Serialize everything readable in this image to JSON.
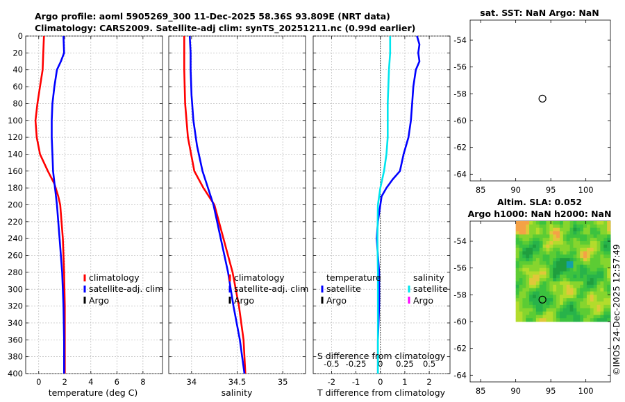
{
  "header": {
    "line1": "Argo profile: aoml 5905269_300 11-Dec-2025 58.36S 93.809E (NRT data)",
    "line2": "Climatology: CARS2009. Satellite-adj clim: synTS_20251211.nc (0.99d earlier)"
  },
  "footer_stamp": "©IMOS 24-Dec-2025 12:57:49",
  "colors": {
    "climatology": "#ff0000",
    "satellite": "#0000ff",
    "argo": "#000000",
    "sal_satellite": "#00e5ee",
    "sal_argo": "#ff00ff"
  },
  "chart_data": [
    {
      "id": "temperature",
      "type": "line",
      "xlabel": "temperature (deg C)",
      "xlim": [
        -1,
        9.5
      ],
      "xticks": [
        0,
        2,
        4,
        6,
        8
      ],
      "xtick_labels": [
        "0",
        "2",
        "4",
        "6",
        "8"
      ],
      "ylim": [
        0,
        400
      ],
      "yticks": [
        0,
        20,
        40,
        60,
        80,
        100,
        120,
        140,
        160,
        180,
        200,
        220,
        240,
        260,
        280,
        300,
        320,
        340,
        360,
        380,
        400
      ],
      "ytick_labels": [
        "0",
        "20",
        "40",
        "60",
        "80",
        "100",
        "120",
        "140",
        "160",
        "180",
        "200",
        "220",
        "240",
        "260",
        "280",
        "300",
        "320",
        "340",
        "360",
        "380",
        "400"
      ],
      "series": [
        {
          "name": "climatology",
          "color": "#ff0000",
          "points": [
            [
              0.4,
              0
            ],
            [
              0.35,
              20
            ],
            [
              0.3,
              40
            ],
            [
              0.1,
              60
            ],
            [
              -0.1,
              80
            ],
            [
              -0.25,
              100
            ],
            [
              -0.15,
              120
            ],
            [
              0.1,
              140
            ],
            [
              0.7,
              160
            ],
            [
              1.2,
              175
            ],
            [
              1.5,
              190
            ],
            [
              1.65,
              200
            ],
            [
              1.85,
              240
            ],
            [
              1.95,
              280
            ],
            [
              2.0,
              320
            ],
            [
              2.0,
              360
            ],
            [
              2.0,
              400
            ]
          ]
        },
        {
          "name": "satellite-adj. clim",
          "color": "#0000ff",
          "points": [
            [
              1.9,
              0
            ],
            [
              1.95,
              20
            ],
            [
              1.7,
              30
            ],
            [
              1.4,
              40
            ],
            [
              1.2,
              60
            ],
            [
              1.05,
              80
            ],
            [
              1.0,
              100
            ],
            [
              1.0,
              120
            ],
            [
              1.05,
              140
            ],
            [
              1.1,
              160
            ],
            [
              1.25,
              180
            ],
            [
              1.4,
              200
            ],
            [
              1.6,
              240
            ],
            [
              1.8,
              280
            ],
            [
              1.9,
              320
            ],
            [
              1.95,
              360
            ],
            [
              1.95,
              400
            ]
          ]
        }
      ],
      "legend": [
        "climatology",
        "satellite-adj. clim",
        "Argo"
      ]
    },
    {
      "id": "salinity",
      "type": "line",
      "xlabel": "salinity",
      "xlim": [
        33.75,
        35.25
      ],
      "xticks": [
        34,
        34.5,
        35
      ],
      "xtick_labels": [
        "34",
        "34.5",
        "35"
      ],
      "ylim": [
        0,
        400
      ],
      "series": [
        {
          "name": "climatology",
          "color": "#ff0000",
          "points": [
            [
              33.92,
              0
            ],
            [
              33.92,
              40
            ],
            [
              33.93,
              80
            ],
            [
              33.96,
              120
            ],
            [
              34.03,
              160
            ],
            [
              34.13,
              180
            ],
            [
              34.25,
              200
            ],
            [
              34.35,
              240
            ],
            [
              34.45,
              280
            ],
            [
              34.52,
              320
            ],
            [
              34.57,
              360
            ],
            [
              34.59,
              400
            ]
          ]
        },
        {
          "name": "satellite-adj. clim",
          "color": "#0000ff",
          "points": [
            [
              33.98,
              0
            ],
            [
              33.99,
              20
            ],
            [
              33.99,
              40
            ],
            [
              34.0,
              70
            ],
            [
              34.02,
              100
            ],
            [
              34.06,
              130
            ],
            [
              34.12,
              160
            ],
            [
              34.18,
              180
            ],
            [
              34.24,
              200
            ],
            [
              34.32,
              240
            ],
            [
              34.4,
              280
            ],
            [
              34.46,
              320
            ],
            [
              34.53,
              360
            ],
            [
              34.58,
              400
            ]
          ]
        }
      ],
      "legend": [
        "climatology",
        "satellite-adj. clim",
        "Argo"
      ]
    },
    {
      "id": "difference",
      "type": "line",
      "xlabel": "T difference from climatology",
      "xlim": [
        -2.75,
        2.85
      ],
      "xticks": [
        -2,
        -1,
        0,
        1,
        2
      ],
      "xtick_labels": [
        "-2",
        "-1",
        "0",
        "1",
        "2"
      ],
      "top_label": "S difference from climatology",
      "top_ticks": [
        "-0.5",
        "-0.25",
        "0",
        "0.25",
        "0.5"
      ],
      "top_tick_positions": [
        -2,
        -1,
        0,
        1,
        2
      ],
      "ylim": [
        0,
        400
      ],
      "series": [
        {
          "name": "temperature satellite",
          "color": "#0000ff",
          "points": [
            [
              1.5,
              0
            ],
            [
              1.6,
              10
            ],
            [
              1.55,
              20
            ],
            [
              1.6,
              30
            ],
            [
              1.45,
              40
            ],
            [
              1.35,
              60
            ],
            [
              1.3,
              80
            ],
            [
              1.25,
              100
            ],
            [
              1.15,
              120
            ],
            [
              0.95,
              140
            ],
            [
              0.8,
              160
            ],
            [
              0.5,
              170
            ],
            [
              0.25,
              180
            ],
            [
              0.05,
              190
            ],
            [
              0.0,
              200
            ],
            [
              -0.1,
              220
            ],
            [
              -0.15,
              240
            ],
            [
              -0.1,
              260
            ],
            [
              -0.05,
              280
            ],
            [
              -0.05,
              320
            ],
            [
              -0.1,
              360
            ],
            [
              -0.1,
              400
            ]
          ]
        },
        {
          "name": "salinity satellite",
          "color": "#00e5ee",
          "points": [
            [
              0.4,
              0
            ],
            [
              0.4,
              20
            ],
            [
              0.35,
              40
            ],
            [
              0.3,
              80
            ],
            [
              0.3,
              100
            ],
            [
              0.3,
              120
            ],
            [
              0.25,
              140
            ],
            [
              0.15,
              160
            ],
            [
              0.0,
              180
            ],
            [
              -0.1,
              200
            ],
            [
              -0.12,
              240
            ],
            [
              -0.1,
              280
            ],
            [
              -0.1,
              320
            ],
            [
              -0.1,
              360
            ],
            [
              -0.1,
              400
            ]
          ]
        }
      ],
      "legend_temperature": {
        "title": "temperature",
        "items": [
          "satellite",
          "Argo"
        ]
      },
      "legend_salinity": {
        "title": "salinity",
        "items": [
          "satellite",
          "Argo"
        ]
      }
    },
    {
      "id": "sst_map",
      "type": "scatter",
      "title": "sat. SST: NaN Argo: NaN",
      "xlim": [
        83.5,
        103.5
      ],
      "ylim": [
        -64.5,
        -52.5
      ],
      "xticks": [
        85,
        90,
        95,
        100
      ],
      "xtick_labels": [
        "85",
        "90",
        "95",
        "100"
      ],
      "yticks": [
        -54,
        -56,
        -58,
        -60,
        -62,
        -64
      ],
      "ytick_labels": [
        "-54",
        "-56",
        "-58",
        "-60",
        "-62",
        "-64"
      ],
      "points": [
        [
          93.81,
          -58.36
        ]
      ]
    },
    {
      "id": "sla_map",
      "type": "heatmap",
      "title_line1": "Altim. SLA: 0.052",
      "title_line2": "Argo h1000: NaN h2000: NaN",
      "xlim": [
        83.5,
        103.5
      ],
      "ylim": [
        -64.5,
        -52.5
      ],
      "field_extent": {
        "lon": [
          90,
          103.5
        ],
        "lat": [
          -60,
          -52.5
        ]
      },
      "xticks": [
        85,
        90,
        95,
        100
      ],
      "xtick_labels": [
        "85",
        "90",
        "95",
        "100"
      ],
      "yticks": [
        -54,
        -56,
        -58,
        -60,
        -62,
        -64
      ],
      "ytick_labels": [
        "-54",
        "-56",
        "-58",
        "-60",
        "-62",
        "-64"
      ],
      "points": [
        [
          93.81,
          -58.36
        ]
      ]
    }
  ]
}
